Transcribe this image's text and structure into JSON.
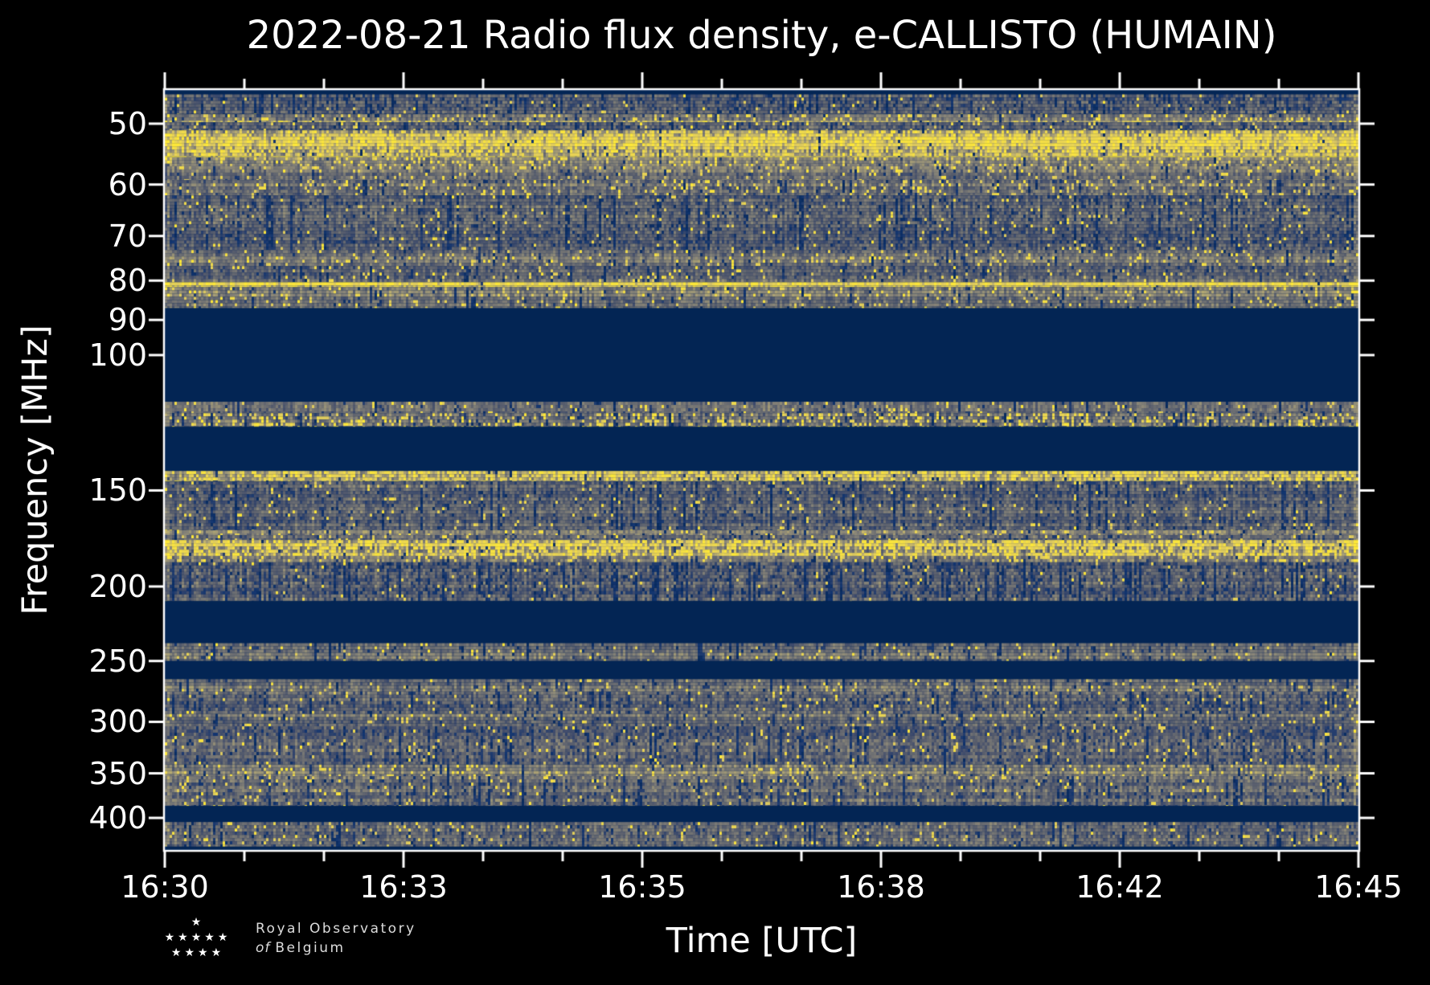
{
  "chart_data": {
    "type": "heatmap",
    "title": "2022-08-21 Radio flux density, e-CALLISTO (HUMAIN)",
    "date": "2022-08-21",
    "instrument": "e-CALLISTO",
    "station": "HUMAIN",
    "xlabel": "Time [UTC]",
    "ylabel": "Frequency [MHz]",
    "x_tick_labels": [
      "16:30",
      "16:33",
      "16:35",
      "16:38",
      "16:42",
      "16:45"
    ],
    "x_minor_ticks_per_interval": 2,
    "time_range_utc": [
      "16:30",
      "16:45"
    ],
    "y_tick_labels_mhz": [
      50,
      60,
      70,
      80,
      90,
      100,
      150,
      200,
      250,
      300,
      350,
      400
    ],
    "y_scale": "log",
    "y_axis_inverted": true,
    "y_range_mhz": [
      45.2,
      440.4
    ],
    "grid": false,
    "legend": "none",
    "colormap": "cividis",
    "colormap_stops": [
      "#00224e",
      "#123570",
      "#3b496c",
      "#575d6d",
      "#707173",
      "#8a8678",
      "#a69d75",
      "#c4b56c",
      "#e4cf5b",
      "#fee838"
    ],
    "blank_value_color": "#01234f",
    "bands": [
      {
        "f0": 45.2,
        "f1": 45.8,
        "kind": "flat",
        "level": 0.02,
        "desc": "dark top edge row"
      },
      {
        "f0": 45.8,
        "f1": 48.6,
        "kind": "noise",
        "base": 0.31,
        "var": 0.3,
        "py": 0.02,
        "pd": 0.2,
        "desc": "blue-gray noise"
      },
      {
        "f0": 48.6,
        "f1": 49.8,
        "kind": "noise",
        "base": 0.55,
        "var": 0.26,
        "py": 0.16,
        "pd": 0.05,
        "desc": "light band with yellow dashes"
      },
      {
        "f0": 49.8,
        "f1": 51.0,
        "kind": "noise",
        "base": 0.33,
        "var": 0.3,
        "py": 0.05,
        "pd": 0.15,
        "desc": "darker mixed rows"
      },
      {
        "f0": 51.0,
        "f1": 55.3,
        "kind": "noise",
        "base": 0.72,
        "var": 0.3,
        "py": 0.45,
        "pd": 0.02,
        "desc": "brightest yellow RFI band ~52-55 MHz"
      },
      {
        "f0": 55.3,
        "f1": 56.8,
        "kind": "noise",
        "base": 0.56,
        "var": 0.26,
        "py": 0.14,
        "pd": 0.03,
        "desc": "tan fade"
      },
      {
        "f0": 56.8,
        "f1": 59.2,
        "kind": "noise",
        "base": 0.45,
        "var": 0.26,
        "py": 0.06,
        "pd": 0.08,
        "desc": "tan-gray noise"
      },
      {
        "f0": 59.2,
        "f1": 62.0,
        "kind": "noise",
        "base": 0.43,
        "var": 0.27,
        "py": 0.1,
        "pd": 0.08,
        "desc": "faint yellow rows"
      },
      {
        "f0": 62.0,
        "f1": 73.0,
        "kind": "noise",
        "base": 0.34,
        "var": 0.28,
        "py": 0.03,
        "pd": 0.17,
        "desc": "blue-gray noise with dark streaks"
      },
      {
        "f0": 73.0,
        "f1": 76.6,
        "kind": "noise",
        "base": 0.45,
        "var": 0.25,
        "py": 0.07,
        "pd": 0.06,
        "desc": "tan rows"
      },
      {
        "f0": 76.6,
        "f1": 80.4,
        "kind": "noise",
        "base": 0.38,
        "var": 0.26,
        "py": 0.04,
        "pd": 0.1,
        "desc": "noise"
      },
      {
        "f0": 80.4,
        "f1": 81.6,
        "kind": "noise",
        "base": 0.9,
        "var": 0.18,
        "py": 0.55,
        "pd": 0.01,
        "desc": "bright yellow line at ~81 MHz"
      },
      {
        "f0": 81.6,
        "f1": 86.9,
        "kind": "noise",
        "base": 0.48,
        "var": 0.26,
        "py": 0.08,
        "pd": 0.06,
        "desc": "tan noise"
      },
      {
        "f0": 86.9,
        "f1": 115.0,
        "kind": "flat",
        "level": 0.02,
        "desc": "blanked FM band gap"
      },
      {
        "f0": 115.0,
        "f1": 119.0,
        "kind": "noise",
        "base": 0.43,
        "var": 0.22,
        "py": 0.05,
        "pd": 0.1,
        "desc": "gray speckle airband"
      },
      {
        "f0": 119.0,
        "f1": 124.0,
        "kind": "noise",
        "base": 0.45,
        "var": 0.3,
        "py": 0.22,
        "pd": 0.1,
        "desc": "yellow dashes and blobs ~120 MHz"
      },
      {
        "f0": 124.0,
        "f1": 141.5,
        "kind": "flat",
        "level": 0.02,
        "desc": "blank gap"
      },
      {
        "f0": 141.5,
        "f1": 146.0,
        "kind": "noise",
        "base": 0.58,
        "var": 0.3,
        "py": 0.35,
        "pd": 0.05,
        "desc": "yellow band ~144 MHz"
      },
      {
        "f0": 146.0,
        "f1": 169.0,
        "kind": "noise",
        "base": 0.36,
        "var": 0.27,
        "py": 0.03,
        "pd": 0.15,
        "desc": "blue-gray noise"
      },
      {
        "f0": 169.0,
        "f1": 171.5,
        "kind": "noise",
        "base": 0.47,
        "var": 0.24,
        "py": 0.06,
        "pd": 0.05,
        "desc": "gray row"
      },
      {
        "f0": 171.5,
        "f1": 174.0,
        "kind": "noise",
        "base": 0.36,
        "var": 0.27,
        "py": 0.04,
        "pd": 0.1,
        "desc": "noise"
      },
      {
        "f0": 174.0,
        "f1": 182.5,
        "kind": "noise",
        "base": 0.62,
        "var": 0.3,
        "py": 0.5,
        "pd": 0.03,
        "desc": "bright yellow dashed double band ~175-182 MHz"
      },
      {
        "f0": 182.5,
        "f1": 186.0,
        "kind": "noise",
        "base": 0.5,
        "var": 0.26,
        "py": 0.12,
        "pd": 0.05,
        "desc": "tan row"
      },
      {
        "f0": 186.0,
        "f1": 209.0,
        "kind": "noise",
        "base": 0.33,
        "var": 0.3,
        "py": 0.02,
        "pd": 0.24,
        "desc": "blue noise with dark vertical streaks"
      },
      {
        "f0": 209.0,
        "f1": 237.0,
        "kind": "flat",
        "level": 0.02,
        "desc": "blank gap"
      },
      {
        "f0": 237.0,
        "f1": 250.0,
        "kind": "noise",
        "base": 0.42,
        "var": 0.23,
        "py": 0.03,
        "pd": 0.1,
        "desc": "thin gray band above 250 MHz"
      },
      {
        "f0": 250.0,
        "f1": 264.0,
        "kind": "flat",
        "level": 0.02,
        "desc": "blank gap"
      },
      {
        "f0": 264.0,
        "f1": 274.0,
        "kind": "noise",
        "base": 0.45,
        "var": 0.25,
        "py": 0.05,
        "pd": 0.08,
        "desc": "gray rows"
      },
      {
        "f0": 274.0,
        "f1": 293.0,
        "kind": "noise",
        "base": 0.36,
        "var": 0.27,
        "py": 0.03,
        "pd": 0.14,
        "desc": "blue-gray noise"
      },
      {
        "f0": 293.0,
        "f1": 304.0,
        "kind": "noise",
        "base": 0.42,
        "var": 0.25,
        "py": 0.05,
        "pd": 0.08,
        "desc": "gray rows ~300 MHz"
      },
      {
        "f0": 304.0,
        "f1": 341.0,
        "kind": "noise",
        "base": 0.35,
        "var": 0.27,
        "py": 0.03,
        "pd": 0.14,
        "desc": "blue-gray noise"
      },
      {
        "f0": 341.0,
        "f1": 353.0,
        "kind": "noise",
        "base": 0.48,
        "var": 0.25,
        "py": 0.09,
        "pd": 0.05,
        "desc": "tan row ~345 MHz"
      },
      {
        "f0": 353.0,
        "f1": 386.0,
        "kind": "noise",
        "base": 0.38,
        "var": 0.27,
        "py": 0.04,
        "pd": 0.12,
        "desc": "noise"
      },
      {
        "f0": 386.0,
        "f1": 405.0,
        "kind": "flat",
        "level": 0.02,
        "desc": "blank gap ~390-405 MHz"
      },
      {
        "f0": 405.0,
        "f1": 436.0,
        "kind": "noise",
        "base": 0.36,
        "var": 0.27,
        "py": 0.04,
        "pd": 0.13,
        "desc": "noise"
      },
      {
        "f0": 436.0,
        "f1": 440.4,
        "kind": "flat",
        "level": 0.02,
        "desc": "dark bottom edge row"
      }
    ]
  },
  "logo": {
    "line1": "Royal Observatory",
    "line2_italic": "of",
    "line2_rest": "Belgium",
    "star_rows": [
      1,
      5,
      4
    ],
    "star_glyph": "★"
  },
  "style": {
    "background": "#000000",
    "text_color": "#ffffff",
    "spine_color": "#ffffff",
    "logo_text_color": "#dcdcdc"
  }
}
